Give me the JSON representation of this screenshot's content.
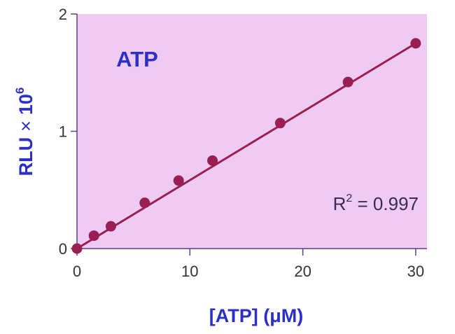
{
  "chart_data": {
    "type": "scatter",
    "title": "ATP",
    "xlabel": "[ATP] (μM)",
    "ylabel_main": "RLU",
    "ylabel_times": "×",
    "ylabel_base": "10",
    "ylabel_exp": "6",
    "xlim": [
      0,
      31
    ],
    "ylim": [
      0,
      2
    ],
    "xticks": [
      0,
      10,
      20,
      30
    ],
    "yticks": [
      0,
      1,
      2
    ],
    "series": [
      {
        "x": [
          0,
          1.5,
          3,
          6,
          9,
          12,
          18,
          24,
          30
        ],
        "y": [
          0.0,
          0.11,
          0.19,
          0.39,
          0.58,
          0.75,
          1.07,
          1.42,
          1.75
        ]
      }
    ],
    "fit": {
      "x": [
        0,
        30
      ],
      "y": [
        0.0,
        1.75
      ]
    },
    "r2_prefix": "R",
    "r2_exp": "2",
    "r2_suffix": " = 0.997",
    "grid": false,
    "colors": {
      "plot_background": "#efcaf2",
      "frame": "#5a3f8c",
      "marker": "#991f52",
      "line": "#991f52",
      "title": "#2c2ec8",
      "axis_title": "#2c2ec8",
      "r2": "#3a2a5a"
    }
  }
}
